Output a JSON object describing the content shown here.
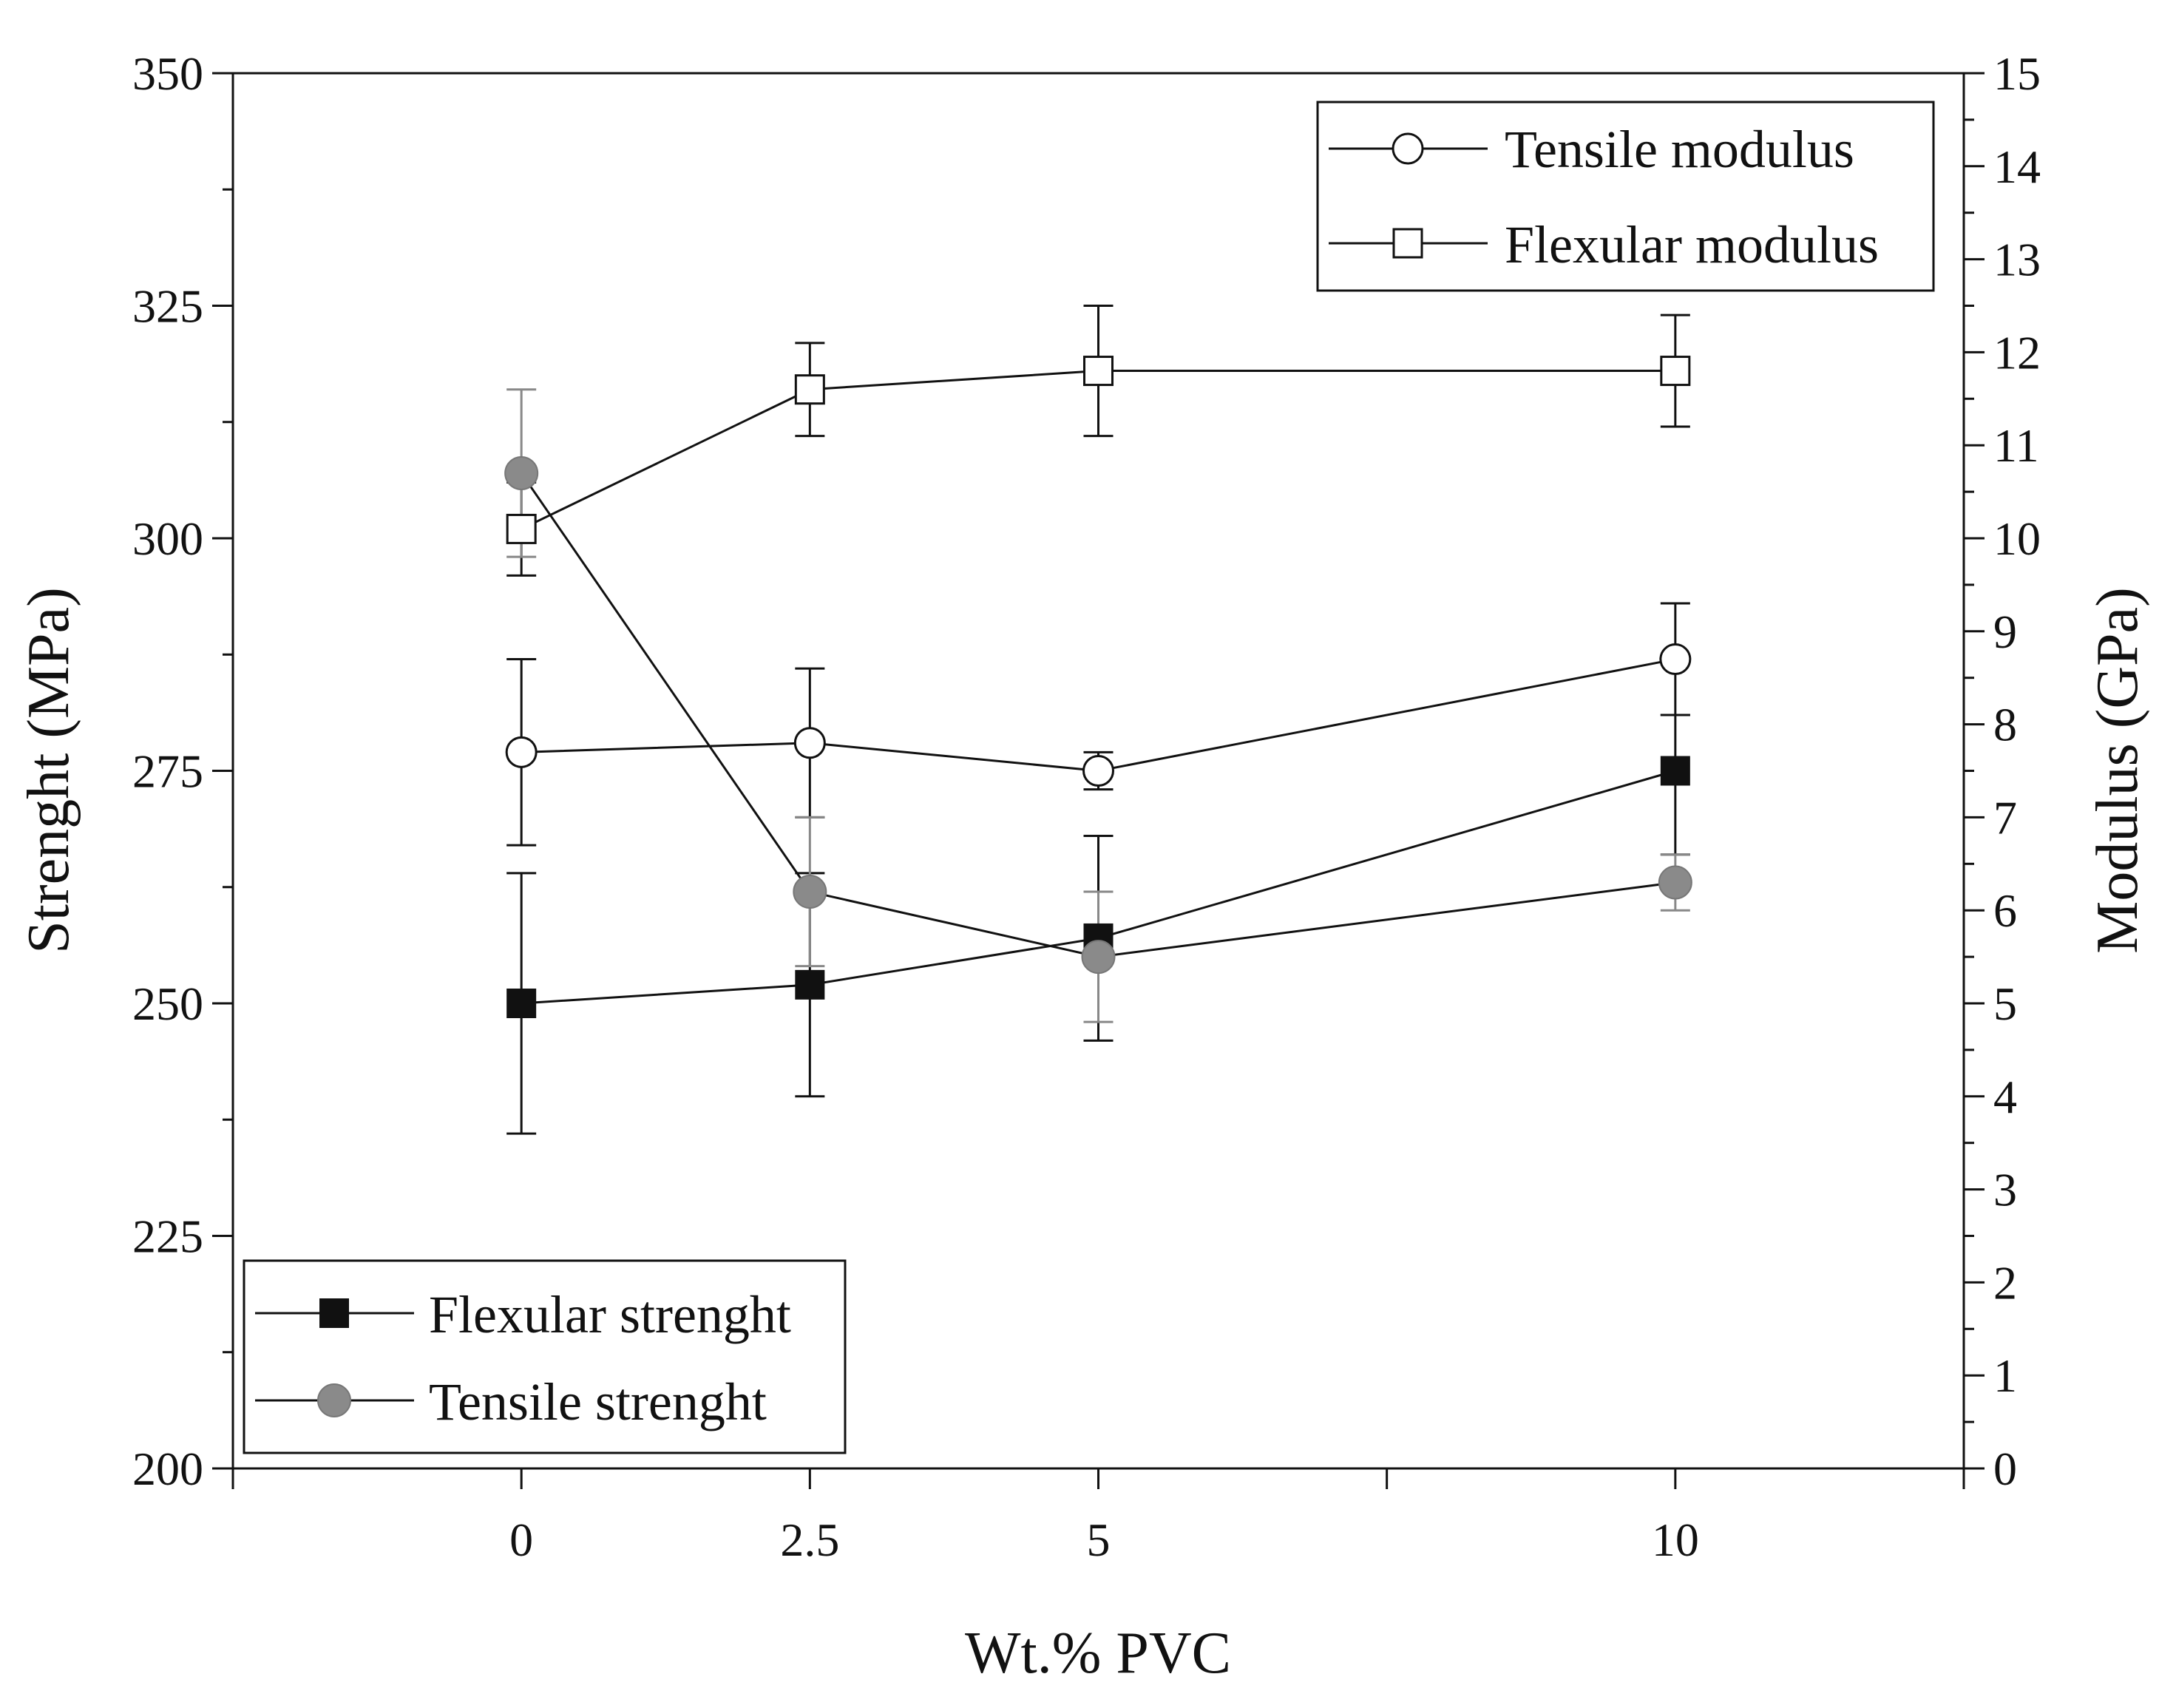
{
  "chart_data": {
    "type": "line",
    "xlabel": "Wt.% PVC",
    "ylabel_left": "Strenght (MPa)",
    "ylabel_right": "Modulus (GPa)",
    "x_categories": [
      "0",
      "2.5",
      "5",
      "10"
    ],
    "x_range": [
      -1,
      5
    ],
    "x_positions": [
      0,
      1,
      2,
      4
    ],
    "x_minor_ticks": [
      -1,
      3,
      5
    ],
    "ylim_left": [
      200,
      350
    ],
    "yticks_left": [
      200,
      225,
      250,
      275,
      300,
      325,
      350
    ],
    "ylim_right": [
      0,
      15
    ],
    "yticks_right": [
      0,
      1,
      2,
      3,
      4,
      5,
      6,
      7,
      8,
      9,
      10,
      11,
      12,
      13,
      14,
      15
    ],
    "series": [
      {
        "name": "Tensile modulus",
        "axis": "right",
        "marker": "open-circle",
        "values": [
          7.7,
          7.8,
          7.5,
          8.7
        ],
        "err_low": [
          6.7,
          7.0,
          7.3,
          8.1
        ],
        "err_high": [
          8.7,
          8.6,
          7.7,
          9.3
        ]
      },
      {
        "name": "Flexular modulus",
        "axis": "right",
        "marker": "open-square",
        "values": [
          10.1,
          11.6,
          11.8,
          11.8
        ],
        "err_low": [
          9.6,
          11.1,
          11.1,
          11.2
        ],
        "err_high": [
          10.6,
          12.1,
          12.5,
          12.4
        ]
      },
      {
        "name": "Flexular strenght",
        "axis": "left",
        "marker": "filled-square",
        "values": [
          250,
          252,
          257,
          275
        ],
        "err_low": [
          236,
          240,
          246,
          266
        ],
        "err_high": [
          264,
          264,
          268,
          281
        ]
      },
      {
        "name": "Tensile strenght",
        "axis": "left",
        "marker": "filled-circle",
        "values": [
          307,
          262,
          255,
          263
        ],
        "err_low": [
          298,
          254,
          248,
          260
        ],
        "err_high": [
          316,
          270,
          262,
          266
        ]
      }
    ],
    "legend_top": {
      "placement": "top-right",
      "entries": [
        "Tensile modulus",
        "Flexular modulus"
      ]
    },
    "legend_bottom": {
      "placement": "bottom-left",
      "entries": [
        "Flexular strenght",
        "Tensile strenght"
      ]
    }
  }
}
